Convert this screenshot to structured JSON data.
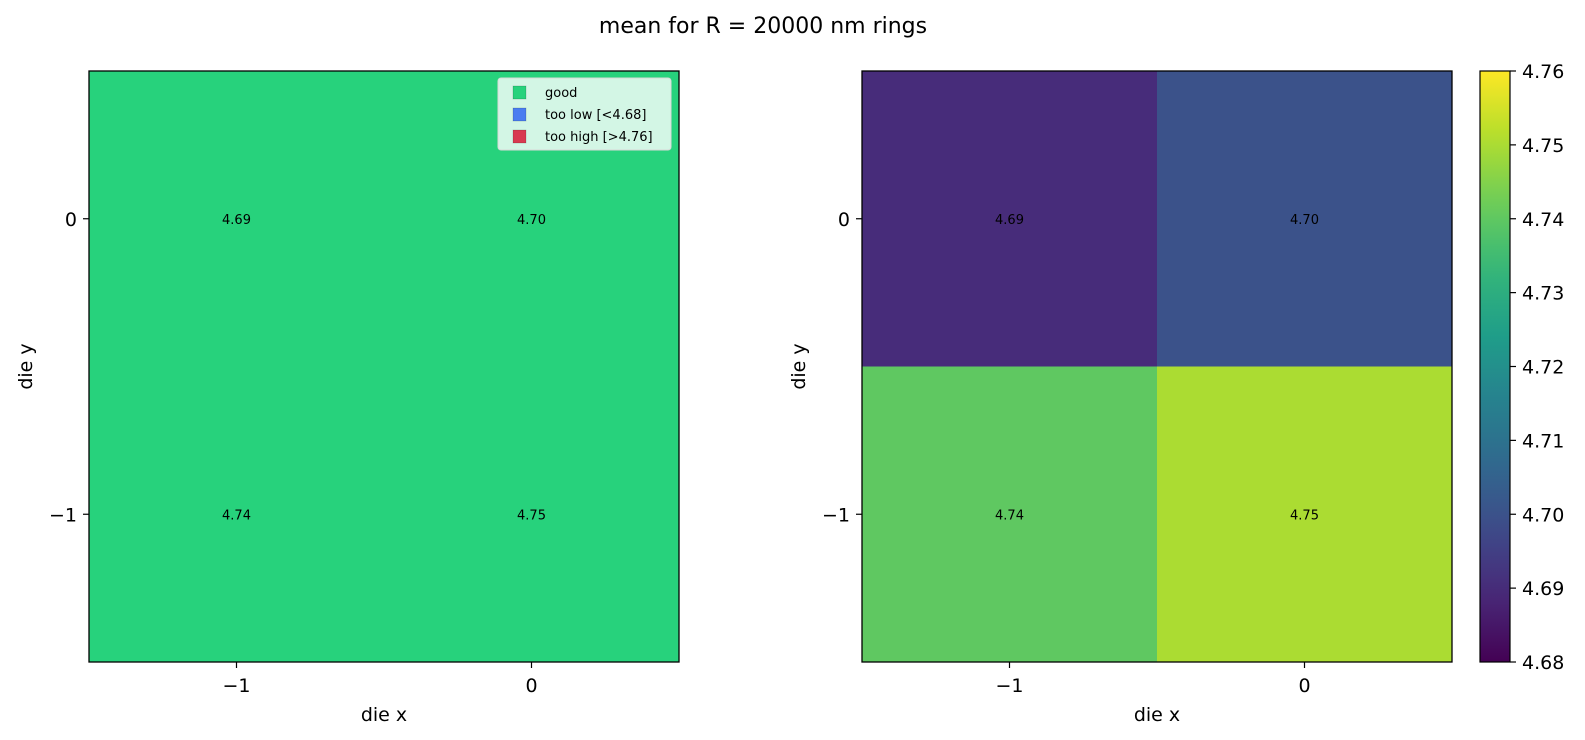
{
  "figure": {
    "title": "mean for R = 20000 nm rings"
  },
  "chart_data": [
    {
      "type": "heatmap",
      "name": "classification",
      "xlabel": "die x",
      "ylabel": "die y",
      "x": [
        -1,
        0
      ],
      "y": [
        0,
        -1
      ],
      "x_tick_labels": [
        "−1",
        "0"
      ],
      "y_tick_labels": [
        "0",
        "−1"
      ],
      "values": [
        [
          4.69,
          4.7
        ],
        [
          4.74,
          4.75
        ]
      ],
      "cell_labels": [
        [
          "4.69",
          "4.70"
        ],
        [
          "4.74",
          "4.75"
        ]
      ],
      "categories": [
        [
          "good",
          "good"
        ],
        [
          "good",
          "good"
        ]
      ],
      "legend": {
        "placement": "upper-right",
        "entries": [
          {
            "label": "good",
            "color": "#27d27c"
          },
          {
            "label": "too low [<4.68]",
            "color": "#4a7df0"
          },
          {
            "label": "too high [>4.76]",
            "color": "#d83a50"
          }
        ]
      }
    },
    {
      "type": "heatmap",
      "name": "values",
      "xlabel": "die x",
      "ylabel": "die y",
      "x": [
        -1,
        0
      ],
      "y": [
        0,
        -1
      ],
      "x_tick_labels": [
        "−1",
        "0"
      ],
      "y_tick_labels": [
        "0",
        "−1"
      ],
      "values": [
        [
          4.69,
          4.7
        ],
        [
          4.74,
          4.75
        ]
      ],
      "cell_labels": [
        [
          "4.69",
          "4.70"
        ],
        [
          "4.74",
          "4.75"
        ]
      ],
      "colormap": "viridis",
      "colorbar": {
        "range": [
          4.68,
          4.76
        ],
        "ticks": [
          4.68,
          4.69,
          4.7,
          4.71,
          4.72,
          4.73,
          4.74,
          4.75,
          4.76
        ],
        "tick_labels": [
          "4.68",
          "4.69",
          "4.70",
          "4.71",
          "4.72",
          "4.73",
          "4.74",
          "4.75",
          "4.76"
        ]
      }
    }
  ],
  "colors": {
    "good": "#27d27c",
    "too_low": "#4a7df0",
    "too_high": "#d83a50",
    "axis": "#000000"
  }
}
